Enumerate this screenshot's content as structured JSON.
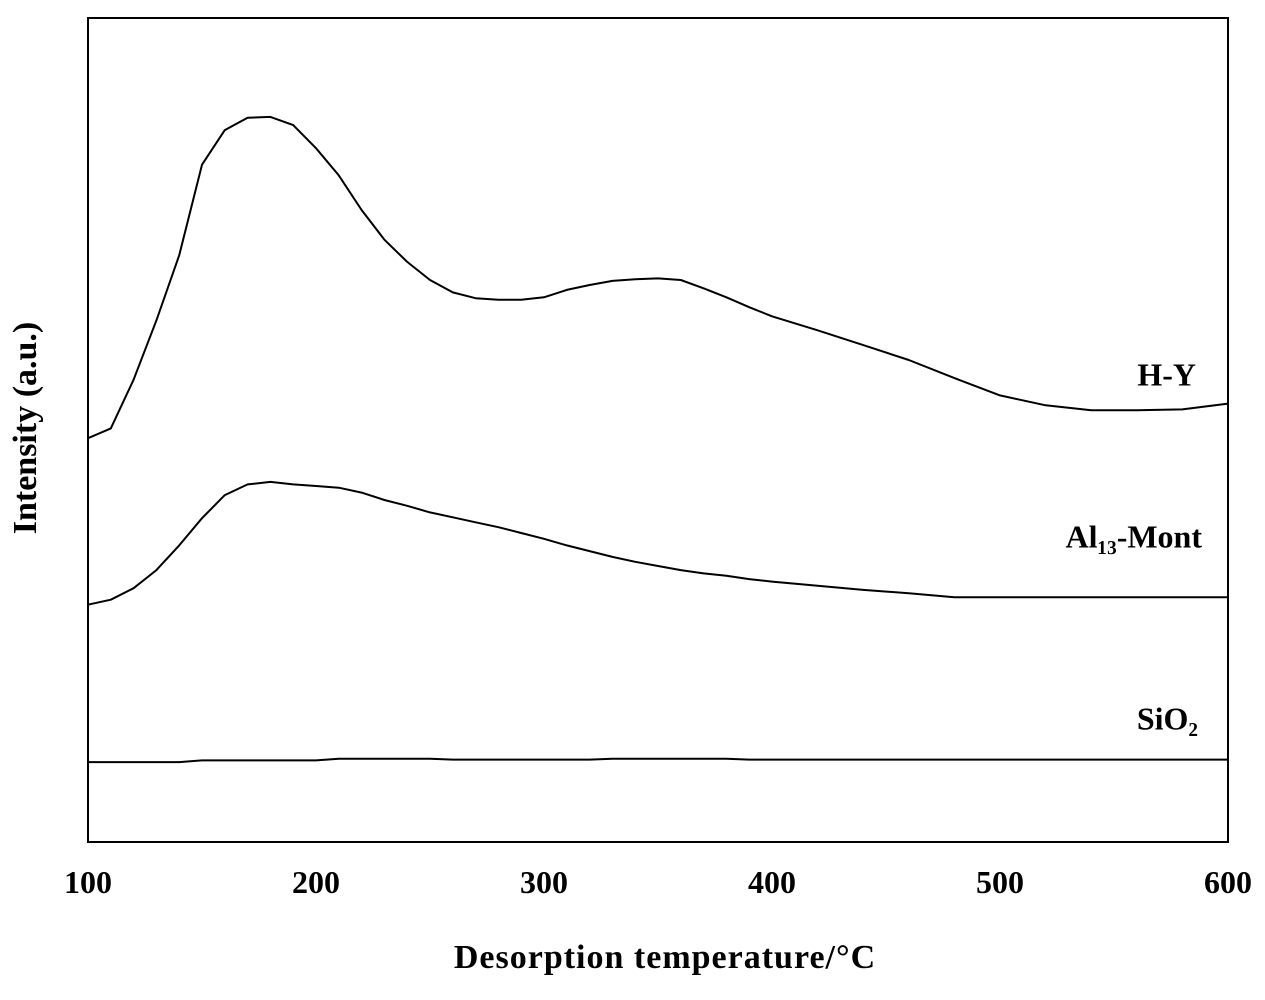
{
  "chart_data": {
    "type": "line",
    "xlabel": "Desorption temperature/°C",
    "ylabel": "Intensity (a.u.)",
    "x": [
      100,
      110,
      120,
      130,
      140,
      150,
      160,
      170,
      180,
      190,
      200,
      210,
      220,
      230,
      240,
      250,
      260,
      270,
      280,
      290,
      300,
      310,
      320,
      330,
      340,
      350,
      360,
      370,
      380,
      390,
      400,
      420,
      440,
      460,
      480,
      500,
      520,
      540,
      560,
      580,
      600
    ],
    "series": [
      {
        "name": "H-Y",
        "color": "#000000",
        "values": [
          49.0,
          50.2,
          56.1,
          63.3,
          71.2,
          82.2,
          86.4,
          87.9,
          88.0,
          87.0,
          84.2,
          80.9,
          76.7,
          73.1,
          70.4,
          68.2,
          66.7,
          66.0,
          65.8,
          65.8,
          66.1,
          67.0,
          67.6,
          68.1,
          68.3,
          68.4,
          68.2,
          67.2,
          66.1,
          64.9,
          63.8,
          62.1,
          60.3,
          58.5,
          56.3,
          54.2,
          53.0,
          52.4,
          52.4,
          52.5,
          53.2
        ]
      },
      {
        "name": "Al₁₃-Mont",
        "color": "#000000",
        "values": [
          28.8,
          29.4,
          30.8,
          33.0,
          36.0,
          39.3,
          42.1,
          43.4,
          43.7,
          43.4,
          43.2,
          43.0,
          42.4,
          41.5,
          40.8,
          40.0,
          39.4,
          38.8,
          38.2,
          37.5,
          36.8,
          36.0,
          35.3,
          34.6,
          34.0,
          33.5,
          33.0,
          32.6,
          32.3,
          31.9,
          31.6,
          31.1,
          30.6,
          30.2,
          29.7,
          29.7,
          29.7,
          29.7,
          29.7,
          29.7,
          29.7
        ]
      },
      {
        "name": "SiO₂",
        "color": "#000000",
        "values": [
          9.7,
          9.7,
          9.7,
          9.7,
          9.7,
          9.9,
          9.9,
          9.9,
          9.9,
          9.9,
          9.9,
          10.1,
          10.1,
          10.1,
          10.1,
          10.1,
          10.0,
          10.0,
          10.0,
          10.0,
          10.0,
          10.0,
          10.0,
          10.1,
          10.1,
          10.1,
          10.1,
          10.1,
          10.1,
          10.0,
          10.0,
          10.0,
          10.0,
          10.0,
          10.0,
          10.0,
          10.0,
          10.0,
          10.0,
          10.0,
          10.0
        ]
      }
    ],
    "xlim": [
      100,
      600
    ],
    "xticks": [
      100,
      200,
      300,
      400,
      500,
      600
    ],
    "ylim": [
      0,
      100
    ]
  }
}
